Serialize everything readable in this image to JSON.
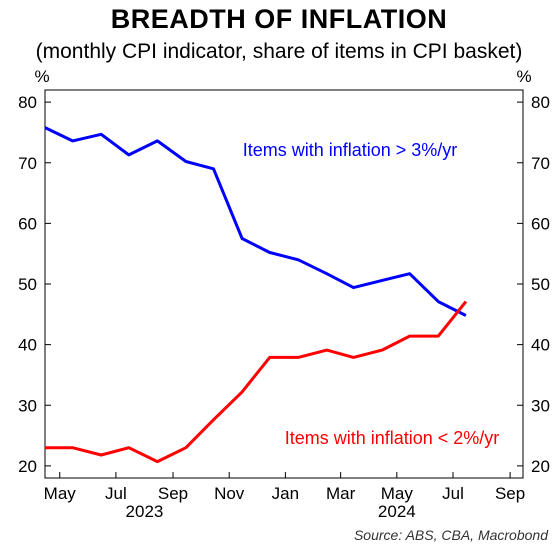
{
  "chart_data": {
    "type": "line",
    "title": "BREADTH OF INFLATION",
    "subtitle": "(monthly CPI indicator, share of items in CPI basket)",
    "y_unit_left": "%",
    "y_unit_right": "%",
    "ylim": [
      18,
      82
    ],
    "yticks": [
      20,
      30,
      40,
      50,
      60,
      70,
      80
    ],
    "xlim": [
      "2023-04-15",
      "2024-09-15"
    ],
    "xticks": [
      {
        "date": "2023-05-01",
        "label": "May"
      },
      {
        "date": "2023-07-01",
        "label": "Jul"
      },
      {
        "date": "2023-09-01",
        "label": "Sep"
      },
      {
        "date": "2023-11-01",
        "label": "Nov"
      },
      {
        "date": "2024-01-01",
        "label": "Jan"
      },
      {
        "date": "2024-03-01",
        "label": "Mar"
      },
      {
        "date": "2024-05-01",
        "label": "May"
      },
      {
        "date": "2024-07-01",
        "label": "Jul"
      },
      {
        "date": "2024-09-01",
        "label": "Sep"
      }
    ],
    "year_labels": [
      {
        "date": "2023-08-01",
        "label": "2023"
      },
      {
        "date": "2024-05-01",
        "label": "2024"
      }
    ],
    "grid": false,
    "series": [
      {
        "name": "Items with inflation > 3%/yr",
        "color": "#0000ff",
        "x": [
          "2023-04-15",
          "2023-05-15",
          "2023-06-15",
          "2023-07-15",
          "2023-08-15",
          "2023-09-15",
          "2023-10-15",
          "2023-11-15",
          "2023-12-15",
          "2024-01-15",
          "2024-02-15",
          "2024-03-15",
          "2024-04-15",
          "2024-05-15",
          "2024-06-15",
          "2024-07-15"
        ],
        "values": [
          75.8,
          73.6,
          74.7,
          71.3,
          73.6,
          70.2,
          69.0,
          57.5,
          55.2,
          54.0,
          51.7,
          49.4,
          50.6,
          51.7,
          47.1,
          44.8
        ]
      },
      {
        "name": "Items with inflation < 2%/yr",
        "color": "#ff0000",
        "x": [
          "2023-04-15",
          "2023-05-15",
          "2023-06-15",
          "2023-07-15",
          "2023-08-15",
          "2023-09-15",
          "2023-10-15",
          "2023-11-15",
          "2023-12-15",
          "2024-01-15",
          "2024-02-15",
          "2024-03-15",
          "2024-04-15",
          "2024-05-15",
          "2024-06-15",
          "2024-07-15"
        ],
        "values": [
          23.0,
          23.0,
          21.8,
          23.0,
          20.7,
          23.0,
          27.6,
          32.2,
          37.9,
          37.9,
          39.1,
          37.9,
          39.1,
          41.4,
          41.4,
          47.1
        ]
      }
    ],
    "annotations": [
      {
        "text": "Items with inflation > 3%/yr",
        "color": "#0000ff"
      },
      {
        "text": "Items with inflation < 2%/yr",
        "color": "#ff0000"
      }
    ],
    "source": "Source: ABS, CBA, Macrobond"
  }
}
